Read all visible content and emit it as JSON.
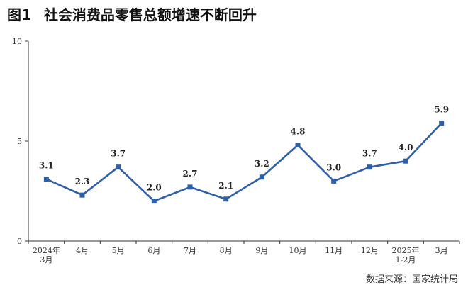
{
  "header": {
    "figure_label": "图1",
    "title": "社会消费品零售总额增速不断回升"
  },
  "source": "数据来源：国家统计局",
  "chart_data": {
    "type": "line",
    "title": "社会消费品零售总额增速不断回升",
    "xlabel": "",
    "ylabel": "",
    "categories": [
      [
        "2024年",
        "3月"
      ],
      [
        "4月"
      ],
      [
        "5月"
      ],
      [
        "6月"
      ],
      [
        "7月"
      ],
      [
        "8月"
      ],
      [
        "9月"
      ],
      [
        "10月"
      ],
      [
        "11月"
      ],
      [
        "12月"
      ],
      [
        "2025年",
        "1-2月"
      ],
      [
        "3月"
      ]
    ],
    "values": [
      3.1,
      2.3,
      3.7,
      2.0,
      2.7,
      2.1,
      3.2,
      4.8,
      3.0,
      3.7,
      4.0,
      5.9
    ],
    "data_labels": [
      "3.1",
      "2.3",
      "3.7",
      "2.0",
      "2.7",
      "2.1",
      "3.2",
      "4.8",
      "3.0",
      "3.7",
      "4.0",
      "5.9"
    ],
    "ylim": [
      0,
      10
    ],
    "yticks": [
      0,
      5,
      10
    ],
    "line_color": "#2f5fa6",
    "marker": "square",
    "grid": false,
    "legend": "none"
  }
}
